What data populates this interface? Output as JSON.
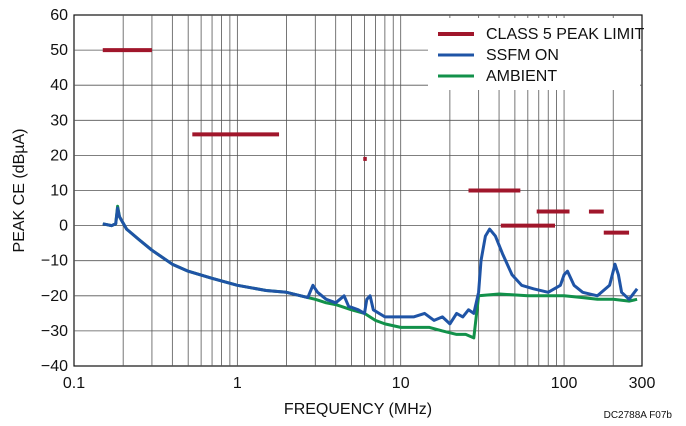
{
  "chart_data": {
    "type": "line",
    "x_scale": "log",
    "xlim": [
      0.1,
      300
    ],
    "ylim": [
      -40,
      60
    ],
    "xlabel": "FREQUENCY (MHz)",
    "ylabel": "PEAK CE (dBµA)",
    "x_tick_labels": [
      "0.1",
      "1",
      "10",
      "100",
      "300"
    ],
    "y_tick_labels": [
      "60",
      "50",
      "40",
      "30",
      "20",
      "10",
      "0",
      "−10",
      "−20",
      "−30",
      "−40"
    ],
    "grid": true,
    "legend_position": "top-right",
    "note": "DC2788A F07b",
    "series": [
      {
        "name": "CLASS 5 PEAK LIMIT",
        "color": "#a0162b",
        "type": "segments",
        "segments": [
          {
            "x": [
              0.15,
              0.3
            ],
            "y": [
              50,
              50
            ]
          },
          {
            "x": [
              0.53,
              1.8
            ],
            "y": [
              26,
              26
            ]
          },
          {
            "x": [
              5.9,
              6.2
            ],
            "y": [
              19,
              19
            ]
          },
          {
            "x": [
              26,
              30
            ],
            "y": [
              10,
              10
            ]
          },
          {
            "x": [
              30,
              54
            ],
            "y": [
              10,
              10
            ]
          },
          {
            "x": [
              41,
              88
            ],
            "y": [
              0,
              0
            ]
          },
          {
            "x": [
              68,
              108
            ],
            "y": [
              4,
              4
            ]
          },
          {
            "x": [
              142,
              175
            ],
            "y": [
              4,
              4
            ]
          },
          {
            "x": [
              175,
              250
            ],
            "y": [
              -2,
              -2
            ]
          }
        ]
      },
      {
        "name": "SSFM ON",
        "color": "#1f54a6",
        "type": "line",
        "points": [
          [
            0.15,
            0.5
          ],
          [
            0.17,
            0
          ],
          [
            0.18,
            0.5
          ],
          [
            0.185,
            5
          ],
          [
            0.19,
            2.5
          ],
          [
            0.21,
            -1
          ],
          [
            0.25,
            -4
          ],
          [
            0.3,
            -7
          ],
          [
            0.4,
            -11
          ],
          [
            0.5,
            -13
          ],
          [
            0.7,
            -15
          ],
          [
            1,
            -17
          ],
          [
            1.5,
            -18.5
          ],
          [
            2,
            -19
          ],
          [
            2.7,
            -20.5
          ],
          [
            2.9,
            -17
          ],
          [
            3.1,
            -19
          ],
          [
            3.5,
            -21
          ],
          [
            4,
            -22
          ],
          [
            4.5,
            -20
          ],
          [
            4.8,
            -23
          ],
          [
            5.5,
            -24
          ],
          [
            6,
            -25
          ],
          [
            6.2,
            -21
          ],
          [
            6.5,
            -20
          ],
          [
            6.8,
            -24
          ],
          [
            8,
            -26
          ],
          [
            10,
            -26
          ],
          [
            12,
            -26
          ],
          [
            14,
            -25
          ],
          [
            16,
            -27
          ],
          [
            18,
            -26
          ],
          [
            20,
            -28
          ],
          [
            22,
            -25
          ],
          [
            24,
            -26
          ],
          [
            26,
            -24
          ],
          [
            28,
            -25
          ],
          [
            30,
            -19
          ],
          [
            31,
            -10
          ],
          [
            33,
            -3
          ],
          [
            35,
            -1
          ],
          [
            38,
            -3
          ],
          [
            42,
            -8
          ],
          [
            48,
            -14
          ],
          [
            55,
            -17
          ],
          [
            65,
            -18
          ],
          [
            80,
            -19
          ],
          [
            95,
            -17
          ],
          [
            100,
            -14
          ],
          [
            105,
            -13
          ],
          [
            115,
            -17
          ],
          [
            130,
            -19
          ],
          [
            160,
            -20
          ],
          [
            190,
            -17
          ],
          [
            205,
            -11
          ],
          [
            215,
            -14
          ],
          [
            225,
            -19
          ],
          [
            250,
            -21
          ],
          [
            280,
            -18
          ]
        ]
      },
      {
        "name": "AMBIENT",
        "color": "#12914a",
        "type": "line",
        "points": [
          [
            0.15,
            0.5
          ],
          [
            0.17,
            0
          ],
          [
            0.18,
            0.5
          ],
          [
            0.185,
            5.5
          ],
          [
            0.19,
            2.5
          ],
          [
            0.21,
            -1
          ],
          [
            0.25,
            -4
          ],
          [
            0.3,
            -7
          ],
          [
            0.4,
            -11
          ],
          [
            0.5,
            -13
          ],
          [
            0.7,
            -15
          ],
          [
            1,
            -17
          ],
          [
            1.5,
            -18.5
          ],
          [
            2,
            -19
          ],
          [
            2.7,
            -20.5
          ],
          [
            3,
            -21
          ],
          [
            3.5,
            -22
          ],
          [
            4,
            -22.5
          ],
          [
            5,
            -24
          ],
          [
            6,
            -25
          ],
          [
            7,
            -27
          ],
          [
            8,
            -28
          ],
          [
            10,
            -29
          ],
          [
            12,
            -29
          ],
          [
            15,
            -29
          ],
          [
            18,
            -30
          ],
          [
            22,
            -31
          ],
          [
            25,
            -31
          ],
          [
            28,
            -32
          ],
          [
            30,
            -20
          ],
          [
            40,
            -19.5
          ],
          [
            60,
            -20
          ],
          [
            80,
            -20
          ],
          [
            100,
            -20
          ],
          [
            130,
            -20.5
          ],
          [
            160,
            -21
          ],
          [
            200,
            -21
          ],
          [
            250,
            -21.5
          ],
          [
            280,
            -21
          ]
        ]
      }
    ]
  }
}
